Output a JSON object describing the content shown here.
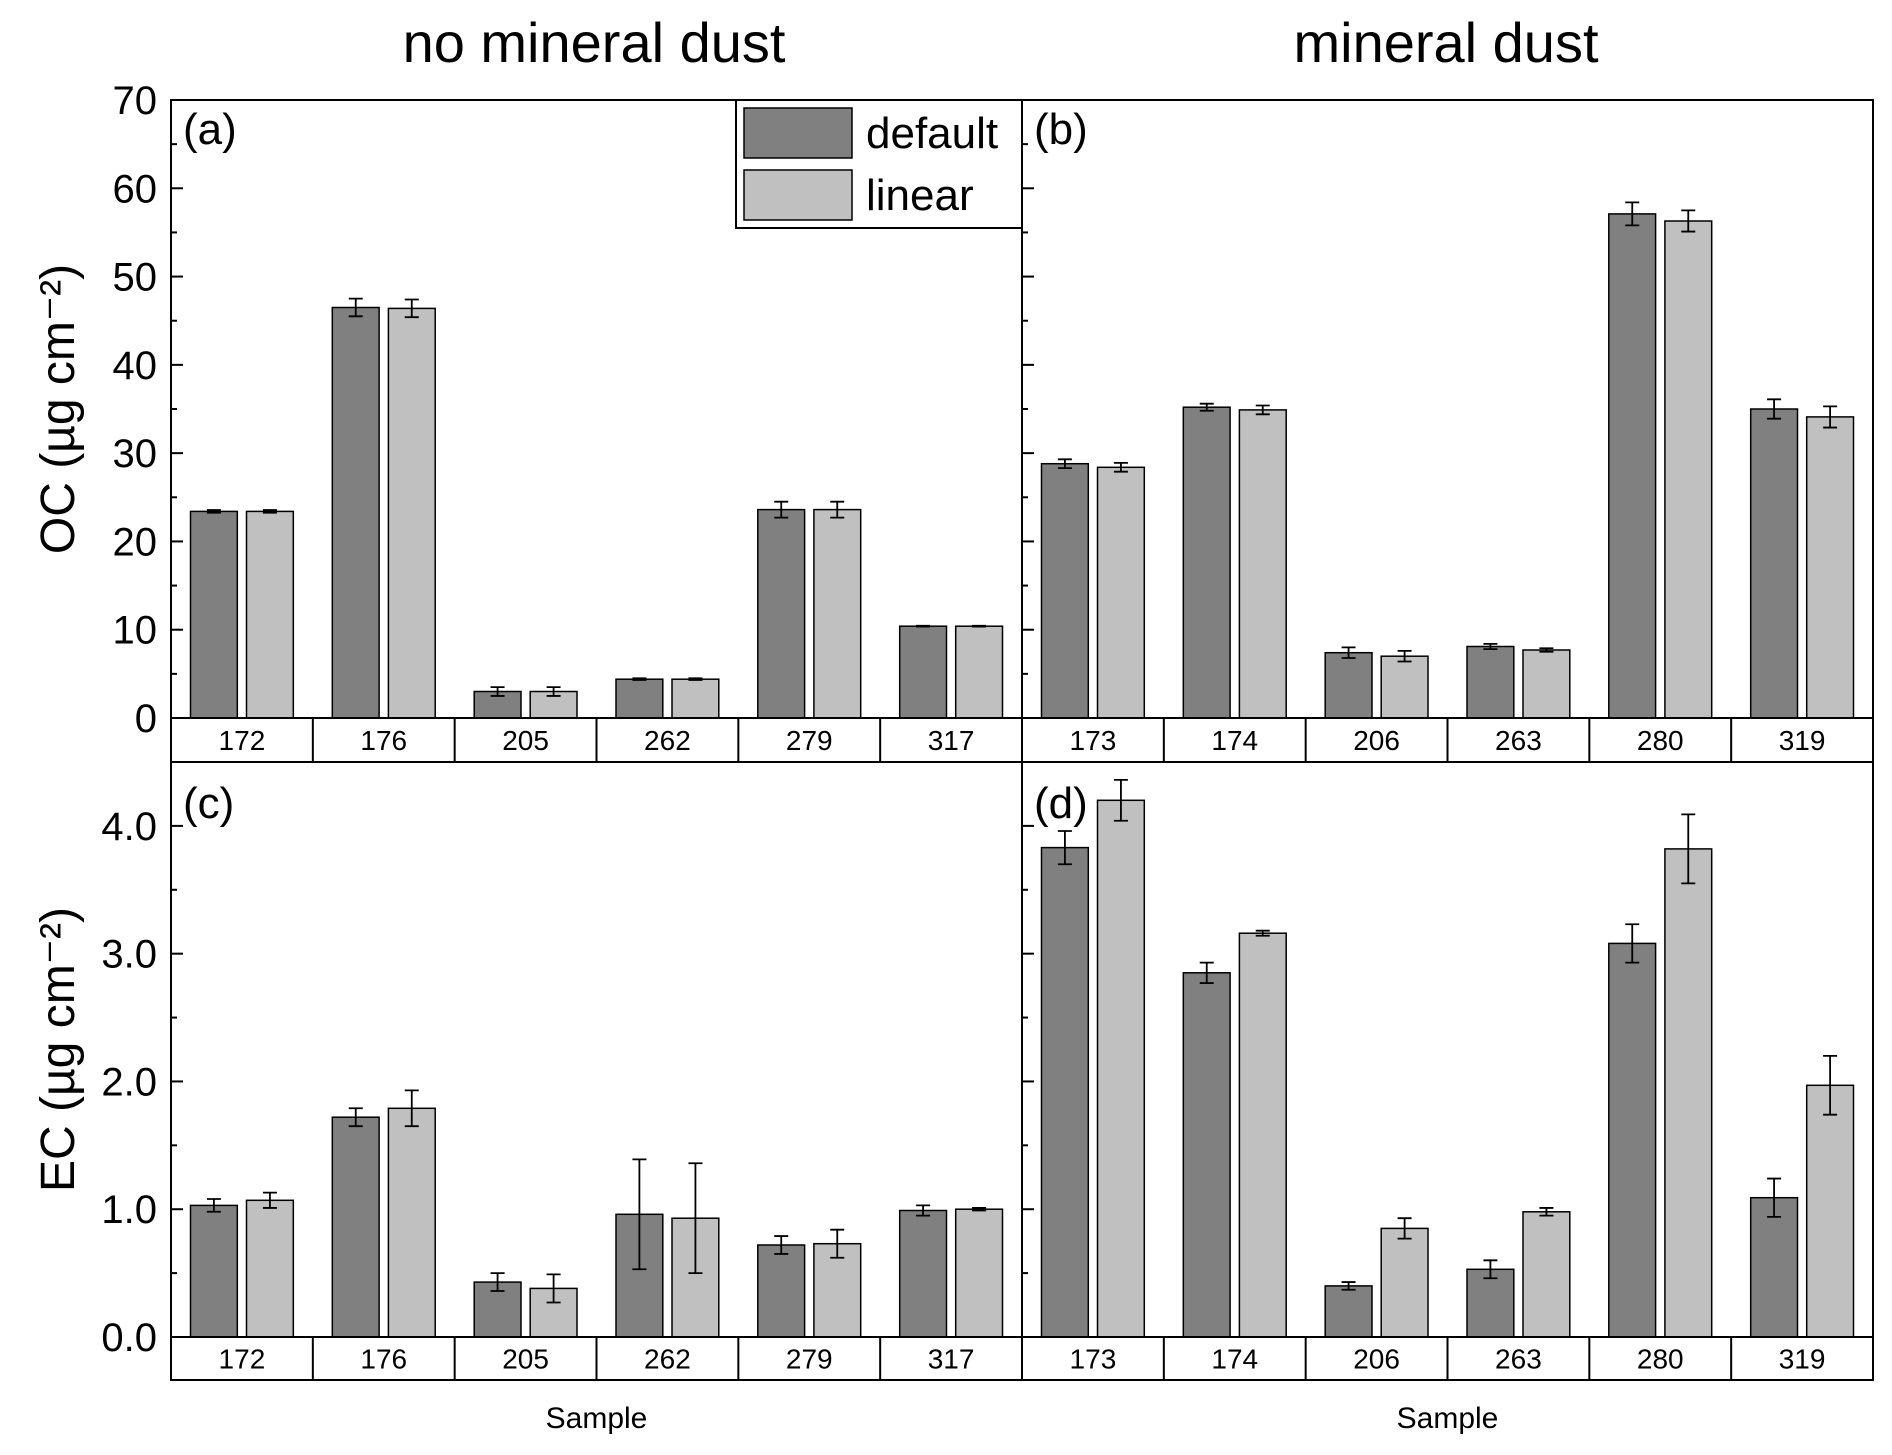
{
  "titles": {
    "left": "no mineral dust",
    "right": "mineral dust"
  },
  "legend": {
    "default": {
      "label": "default",
      "color": "#808080"
    },
    "linear": {
      "label": "linear",
      "color": "#c0c0c0"
    }
  },
  "chart_data": [
    {
      "type": "bar",
      "panel_label": "(a)",
      "column_title": "no mineral dust",
      "xlabel": "",
      "ylabel": "OC (µg cm⁻²)",
      "ylim": [
        0,
        70
      ],
      "yticks": [
        "0",
        "10",
        "20",
        "30",
        "40",
        "50",
        "60",
        "70"
      ],
      "ytick_values": [
        0,
        10,
        20,
        30,
        40,
        50,
        60,
        70
      ],
      "categories": [
        "172",
        "176",
        "205",
        "262",
        "279",
        "317"
      ],
      "series": [
        {
          "name": "default",
          "values": [
            23.4,
            46.5,
            3.0,
            4.4,
            23.6,
            10.4
          ],
          "errors": [
            0.15,
            1.0,
            0.5,
            0.1,
            0.9,
            0.05
          ]
        },
        {
          "name": "linear",
          "values": [
            23.4,
            46.4,
            3.0,
            4.4,
            23.6,
            10.4
          ],
          "errors": [
            0.15,
            1.0,
            0.5,
            0.1,
            0.9,
            0.05
          ]
        }
      ]
    },
    {
      "type": "bar",
      "panel_label": "(b)",
      "column_title": "mineral dust",
      "xlabel": "",
      "ylabel": "",
      "ylim": [
        0,
        70
      ],
      "yticks": [],
      "ytick_values": [
        0,
        10,
        20,
        30,
        40,
        50,
        60,
        70
      ],
      "categories": [
        "173",
        "174",
        "206",
        "263",
        "280",
        "319"
      ],
      "series": [
        {
          "name": "default",
          "values": [
            28.8,
            35.2,
            7.4,
            8.1,
            57.1,
            35.0
          ],
          "errors": [
            0.5,
            0.4,
            0.6,
            0.3,
            1.3,
            1.1
          ]
        },
        {
          "name": "linear",
          "values": [
            28.4,
            34.9,
            7.0,
            7.7,
            56.3,
            34.1
          ],
          "errors": [
            0.5,
            0.5,
            0.6,
            0.2,
            1.2,
            1.2
          ]
        }
      ]
    },
    {
      "type": "bar",
      "panel_label": "(c)",
      "column_title": "no mineral dust",
      "xlabel": "Sample",
      "ylabel": "EC (µg cm⁻²)",
      "ylim": [
        0,
        4.5
      ],
      "yticks": [
        "0.0",
        "1.0",
        "2.0",
        "3.0",
        "4.0"
      ],
      "ytick_values": [
        0,
        1,
        2,
        3,
        4
      ],
      "categories": [
        "172",
        "176",
        "205",
        "262",
        "279",
        "317"
      ],
      "series": [
        {
          "name": "default",
          "values": [
            1.03,
            1.72,
            0.43,
            0.96,
            0.72,
            0.99
          ],
          "errors": [
            0.05,
            0.07,
            0.07,
            0.43,
            0.07,
            0.04
          ]
        },
        {
          "name": "linear",
          "values": [
            1.07,
            1.79,
            0.38,
            0.93,
            0.73,
            1.0
          ],
          "errors": [
            0.06,
            0.14,
            0.11,
            0.43,
            0.11,
            0.01
          ]
        }
      ]
    },
    {
      "type": "bar",
      "panel_label": "(d)",
      "column_title": "mineral dust",
      "xlabel": "Sample",
      "ylabel": "",
      "ylim": [
        0,
        4.5
      ],
      "yticks": [],
      "ytick_values": [
        0,
        1,
        2,
        3,
        4
      ],
      "categories": [
        "173",
        "174",
        "206",
        "263",
        "280",
        "319"
      ],
      "series": [
        {
          "name": "default",
          "values": [
            3.83,
            2.85,
            0.4,
            0.53,
            3.08,
            1.09
          ],
          "errors": [
            0.13,
            0.08,
            0.03,
            0.07,
            0.15,
            0.15
          ]
        },
        {
          "name": "linear",
          "values": [
            4.2,
            3.16,
            0.85,
            0.98,
            3.82,
            1.97
          ],
          "errors": [
            0.16,
            0.02,
            0.08,
            0.03,
            0.27,
            0.23
          ]
        }
      ]
    }
  ]
}
